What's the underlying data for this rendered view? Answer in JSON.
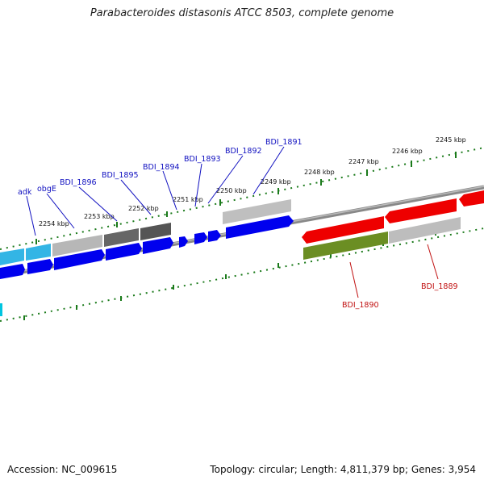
{
  "title": "Parabacteroides distasonis ATCC 8503, complete genome",
  "footer": {
    "accession": "Accession: NC_009615",
    "summary": "Topology: circular; Length: 4,811,379 bp; Genes: 3,954"
  },
  "colors": {
    "forward_gene": "#0000ee",
    "reverse_gene": "#ee0000",
    "cyan_gene": "#00b7ee",
    "olive_gene": "#6b8e23",
    "gray_dark": "#555555",
    "gray_light": "#b0b0b0",
    "tick": "#1a7a1a",
    "forward_label": "#1010c0",
    "reverse_label": "#c01010"
  },
  "ticks": [
    "2254 kbp",
    "2253 kbp",
    "2252 kbp",
    "2251 kbp",
    "2250 kbp",
    "2249 kbp",
    "2248 kbp",
    "2247 kbp",
    "2246 kbp",
    "2245 kbp"
  ],
  "forward_labels": [
    "adk",
    "obgE",
    "BDI_1896",
    "BDI_1895",
    "BDI_1894",
    "BDI_1893",
    "BDI_1892",
    "BDI_1891"
  ],
  "reverse_labels": [
    "BDI_1890",
    "BDI_1889"
  ]
}
